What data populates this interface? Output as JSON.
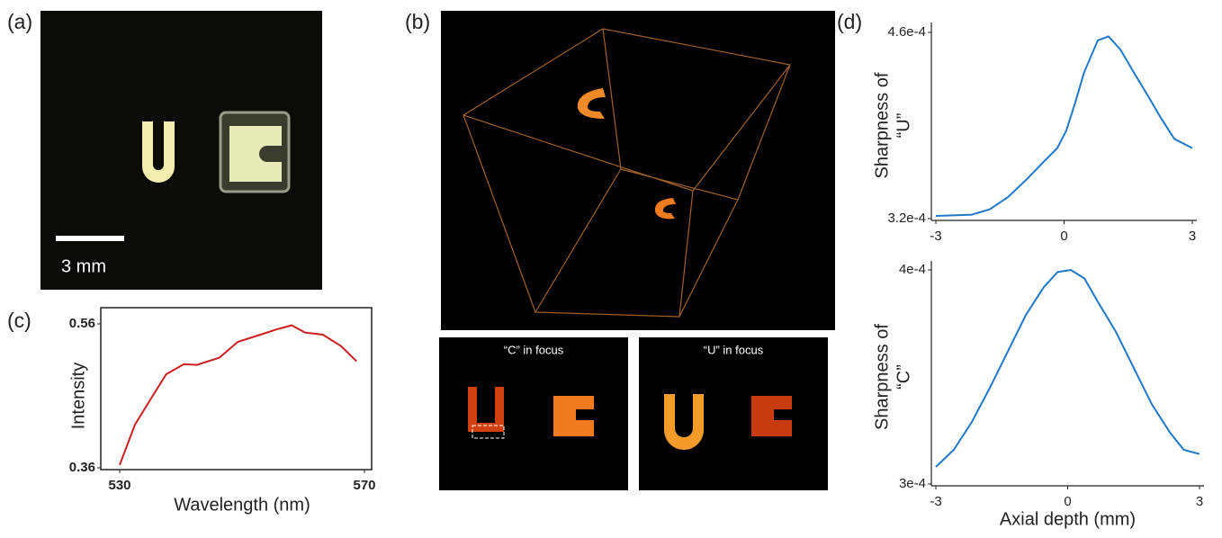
{
  "panels": {
    "a": {
      "label": "(a)",
      "scale_bar": "3 mm"
    },
    "b": {
      "label": "(b)",
      "insets": [
        "“C” in focus",
        "“U” in focus"
      ]
    },
    "c": {
      "label": "(c)"
    },
    "d": {
      "label": "(d)"
    }
  },
  "chart_data": [
    {
      "type": "line",
      "ylabel": [
        "Intensity"
      ],
      "xlabel": "Wavelength (nm)",
      "color": "#cc1f1f",
      "x": [
        530,
        532.5,
        535.4,
        537.6,
        540.5,
        542.6,
        546.3,
        549.3,
        553,
        555.9,
        558.1,
        560.3,
        563.2,
        566.2,
        568.7
      ],
      "values": [
        0.364,
        0.42,
        0.46,
        0.49,
        0.504,
        0.503,
        0.513,
        0.535,
        0.545,
        0.553,
        0.558,
        0.548,
        0.545,
        0.529,
        0.508
      ],
      "xlim": [
        530,
        570
      ],
      "xticks": [
        530,
        570
      ],
      "ylim": [
        0.36,
        0.56
      ],
      "yticks": [
        0.56,
        0.36
      ]
    },
    {
      "type": "line",
      "ylabel": [
        "Sharpness of",
        "“U”"
      ],
      "color": "#1f78c8",
      "x": [
        -3,
        -2.16,
        -1.74,
        -1.32,
        -0.89,
        -0.47,
        -0.16,
        0.05,
        0.26,
        0.47,
        0.79,
        1.04,
        1.32,
        1.63,
        1.95,
        2.26,
        2.58,
        3
      ],
      "values": [
        0.000322,
        0.000323,
        0.000327,
        0.000336,
        0.000349,
        0.000363,
        0.000373,
        0.000386,
        0.000407,
        0.00043,
        0.000454,
        0.000457,
        0.000447,
        0.00043,
        0.000413,
        0.000396,
        0.00038,
        0.000373
      ],
      "xlim": [
        -3,
        3
      ],
      "xticks": [
        -3,
        0,
        3
      ],
      "ylim": [
        0.00032,
        0.00046
      ],
      "yticks": [
        {
          "value": 0.00046,
          "label": "4.6e-4"
        },
        {
          "value": 0.00032,
          "label": "3.2e-4"
        }
      ]
    },
    {
      "type": "line",
      "ylabel": [
        "Sharpness of",
        "“C”"
      ],
      "xlabel": "Axial depth (mm)",
      "color": "#1f78c8",
      "x": [
        -3,
        -2.59,
        -2.18,
        -1.77,
        -1.36,
        -0.95,
        -0.54,
        -0.23,
        0.07,
        0.38,
        0.69,
        1.1,
        1.51,
        1.92,
        2.33,
        2.64,
        3
      ],
      "values": [
        0.000308,
        0.000316,
        0.000329,
        0.000345,
        0.000362,
        0.000379,
        0.000392,
        0.000399,
        0.0004,
        0.000396,
        0.000385,
        0.000371,
        0.000354,
        0.000337,
        0.000324,
        0.000316,
        0.000314
      ],
      "xlim": [
        -3,
        3
      ],
      "xticks": [
        -3,
        0,
        3
      ],
      "ylim": [
        0.0003,
        0.0004
      ],
      "yticks": [
        {
          "value": 0.0004,
          "label": "4e-4"
        },
        {
          "value": 0.0003,
          "label": "3e-4"
        }
      ]
    }
  ]
}
